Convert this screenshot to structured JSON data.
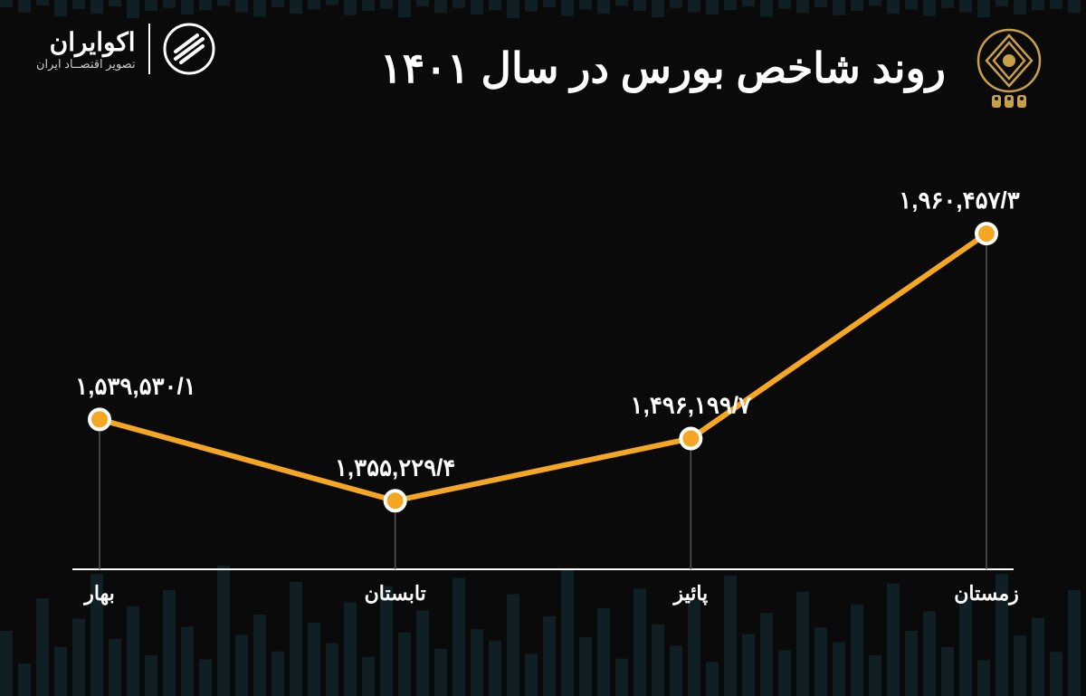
{
  "header": {
    "title": "روند شاخص بورس در سال ۱۴۰۱",
    "brand_name": "اکوایران",
    "brand_tagline": "تصویر اقتصــاد ایران"
  },
  "chart": {
    "type": "line",
    "categories": [
      "بهار",
      "تابستان",
      "پائیز",
      "زمستان"
    ],
    "values": [
      1539530.1,
      1355229.4,
      1496199.7,
      1960457.3
    ],
    "value_labels": [
      "۱,۵۳۹,۵۳۰/۱",
      "۱,۳۵۵,۲۲۹/۴",
      "۱,۴۹۶,۱۹۹/۷",
      "۱,۹۶۰,۴۵۷/۳"
    ],
    "line_color": "#f5a623",
    "line_width": 6,
    "marker_fill": "#f5a623",
    "marker_stroke": "#ffffff",
    "marker_radius": 11,
    "marker_stroke_width": 4,
    "drop_line_color": "#555555",
    "axis_color": "#ffffff",
    "text_color": "#ffffff",
    "background_color": "#0a0a0a",
    "bg_bar_color": "#163238",
    "label_fontsize": 26,
    "axis_fontsize": 22,
    "ylim": [
      1200000,
      2100000
    ]
  }
}
